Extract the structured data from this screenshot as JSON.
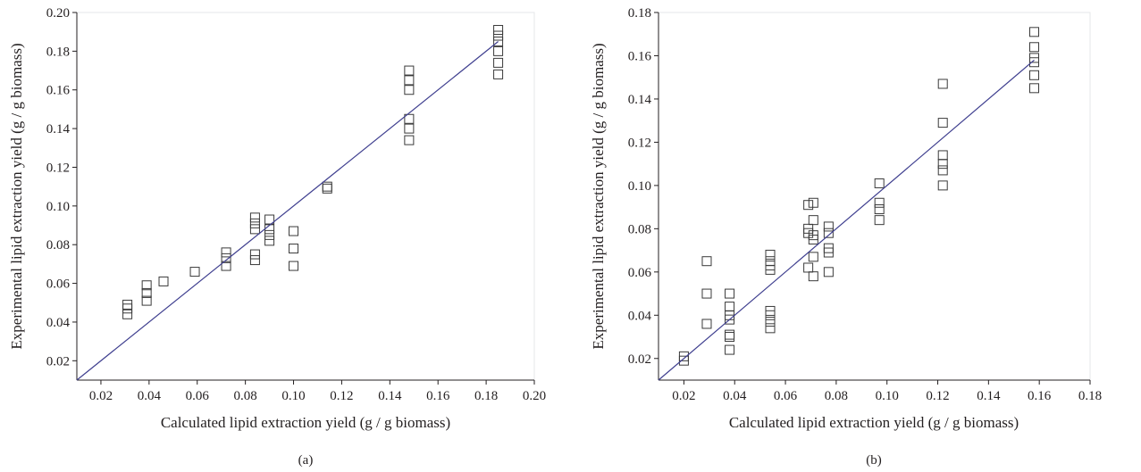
{
  "chart_data": [
    {
      "type": "scatter",
      "panel_label": "(a)",
      "xlabel": "Calculated lipid extraction yield (g / g biomass)",
      "ylabel": "Experimental lipid extraction yield (g / g biomass)",
      "xlim": [
        0.01,
        0.2
      ],
      "ylim": [
        0.01,
        0.2
      ],
      "xticks": [
        0.02,
        0.04,
        0.06,
        0.08,
        0.1,
        0.12,
        0.14,
        0.16,
        0.18,
        0.2
      ],
      "xtick_labels": [
        "0.02",
        "0.04",
        "0.06",
        "0.08",
        "0.10",
        "0.12",
        "0.14",
        "0.16",
        "0.18",
        "0.20"
      ],
      "yticks": [
        0.02,
        0.04,
        0.06,
        0.08,
        0.1,
        0.12,
        0.14,
        0.16,
        0.18,
        0.2
      ],
      "ytick_labels": [
        "0.02",
        "0.04",
        "0.06",
        "0.08",
        "0.10",
        "0.12",
        "0.14",
        "0.16",
        "0.18",
        "0.20"
      ],
      "marker": "open-square",
      "line_color": "#3f3f8f",
      "points": [
        [
          0.031,
          0.044
        ],
        [
          0.031,
          0.047
        ],
        [
          0.031,
          0.049
        ],
        [
          0.039,
          0.051
        ],
        [
          0.039,
          0.055
        ],
        [
          0.039,
          0.059
        ],
        [
          0.046,
          0.061
        ],
        [
          0.059,
          0.066
        ],
        [
          0.072,
          0.069
        ],
        [
          0.072,
          0.073
        ],
        [
          0.072,
          0.076
        ],
        [
          0.084,
          0.072
        ],
        [
          0.084,
          0.075
        ],
        [
          0.084,
          0.088
        ],
        [
          0.084,
          0.091
        ],
        [
          0.084,
          0.094
        ],
        [
          0.09,
          0.082
        ],
        [
          0.09,
          0.085
        ],
        [
          0.09,
          0.088
        ],
        [
          0.09,
          0.093
        ],
        [
          0.1,
          0.069
        ],
        [
          0.1,
          0.078
        ],
        [
          0.1,
          0.087
        ],
        [
          0.114,
          0.109
        ],
        [
          0.114,
          0.11
        ],
        [
          0.148,
          0.134
        ],
        [
          0.148,
          0.14
        ],
        [
          0.148,
          0.145
        ],
        [
          0.148,
          0.16
        ],
        [
          0.148,
          0.165
        ],
        [
          0.148,
          0.17
        ],
        [
          0.185,
          0.168
        ],
        [
          0.185,
          0.174
        ],
        [
          0.185,
          0.18
        ],
        [
          0.185,
          0.185
        ],
        [
          0.185,
          0.188
        ],
        [
          0.185,
          0.191
        ]
      ],
      "fit_line": {
        "x": [
          0.01,
          0.185
        ],
        "y": [
          0.01,
          0.185
        ]
      }
    },
    {
      "type": "scatter",
      "panel_label": "(b)",
      "xlabel": "Calculated lipid extraction yield (g / g biomass)",
      "ylabel": "Experimental lipid extraction yield (g / g biomass)",
      "xlim": [
        0.01,
        0.18
      ],
      "ylim": [
        0.01,
        0.18
      ],
      "xticks": [
        0.02,
        0.04,
        0.06,
        0.08,
        0.1,
        0.12,
        0.14,
        0.16,
        0.18
      ],
      "xtick_labels": [
        "0.02",
        "0.04",
        "0.06",
        "0.08",
        "0.10",
        "0.12",
        "0.14",
        "0.16",
        "0.18"
      ],
      "yticks": [
        0.02,
        0.04,
        0.06,
        0.08,
        0.1,
        0.12,
        0.14,
        0.16,
        0.18
      ],
      "ytick_labels": [
        "0.02",
        "0.04",
        "0.06",
        "0.08",
        "0.10",
        "0.12",
        "0.14",
        "0.16",
        "0.18"
      ],
      "marker": "open-square",
      "line_color": "#3f3f8f",
      "points": [
        [
          0.02,
          0.019
        ],
        [
          0.02,
          0.021
        ],
        [
          0.029,
          0.036
        ],
        [
          0.029,
          0.05
        ],
        [
          0.029,
          0.065
        ],
        [
          0.038,
          0.024
        ],
        [
          0.038,
          0.03
        ],
        [
          0.038,
          0.031
        ],
        [
          0.038,
          0.038
        ],
        [
          0.038,
          0.04
        ],
        [
          0.038,
          0.044
        ],
        [
          0.038,
          0.05
        ],
        [
          0.054,
          0.034
        ],
        [
          0.054,
          0.037
        ],
        [
          0.054,
          0.04
        ],
        [
          0.054,
          0.042
        ],
        [
          0.054,
          0.061
        ],
        [
          0.054,
          0.063
        ],
        [
          0.054,
          0.065
        ],
        [
          0.054,
          0.068
        ],
        [
          0.069,
          0.062
        ],
        [
          0.069,
          0.078
        ],
        [
          0.069,
          0.08
        ],
        [
          0.069,
          0.091
        ],
        [
          0.071,
          0.058
        ],
        [
          0.071,
          0.067
        ],
        [
          0.071,
          0.075
        ],
        [
          0.071,
          0.077
        ],
        [
          0.071,
          0.084
        ],
        [
          0.071,
          0.092
        ],
        [
          0.077,
          0.06
        ],
        [
          0.077,
          0.069
        ],
        [
          0.077,
          0.071
        ],
        [
          0.077,
          0.078
        ],
        [
          0.077,
          0.081
        ],
        [
          0.097,
          0.084
        ],
        [
          0.097,
          0.089
        ],
        [
          0.097,
          0.092
        ],
        [
          0.097,
          0.101
        ],
        [
          0.122,
          0.1
        ],
        [
          0.122,
          0.107
        ],
        [
          0.122,
          0.11
        ],
        [
          0.122,
          0.114
        ],
        [
          0.122,
          0.129
        ],
        [
          0.122,
          0.147
        ],
        [
          0.158,
          0.145
        ],
        [
          0.158,
          0.151
        ],
        [
          0.158,
          0.157
        ],
        [
          0.158,
          0.159
        ],
        [
          0.158,
          0.164
        ],
        [
          0.158,
          0.171
        ]
      ],
      "fit_line": {
        "x": [
          0.01,
          0.158
        ],
        "y": [
          0.01,
          0.158
        ]
      }
    }
  ]
}
